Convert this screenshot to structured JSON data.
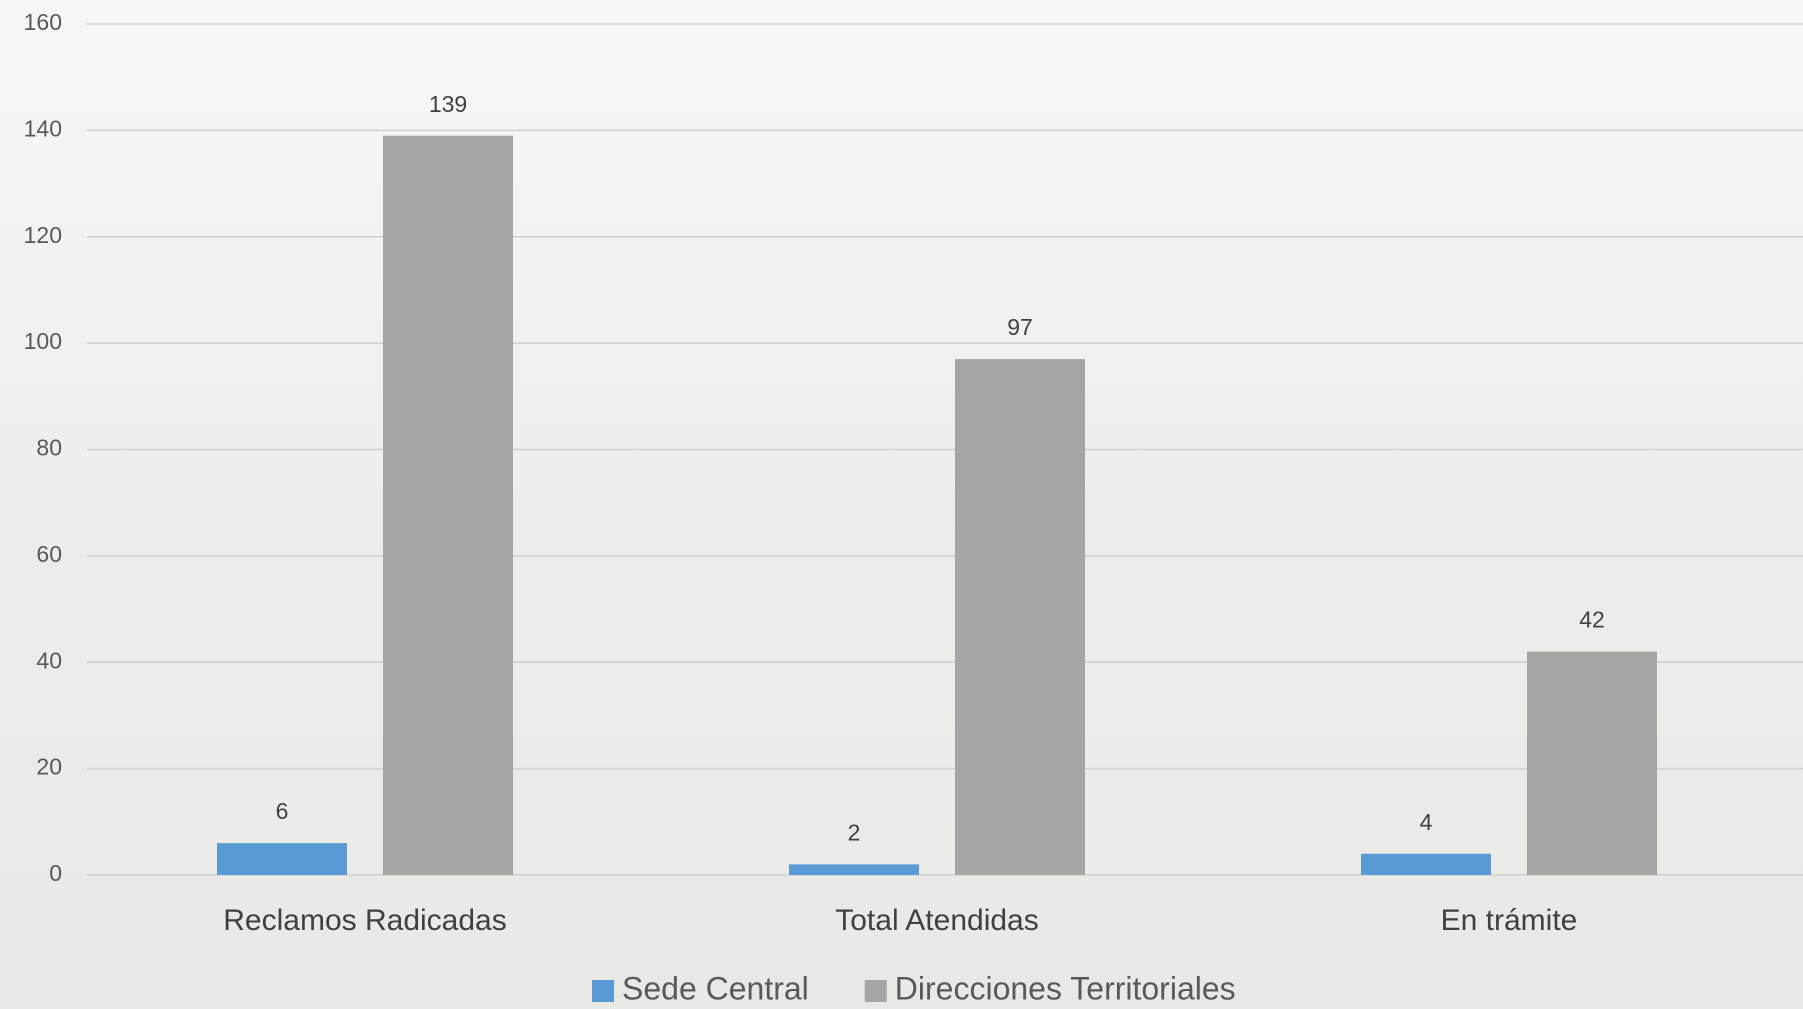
{
  "chart_data": {
    "type": "bar",
    "categories": [
      "Reclamos Radicadas",
      "Total Atendidas",
      "En trámite"
    ],
    "series": [
      {
        "name": "Sede Central",
        "color": "#5b9bd5",
        "values": [
          6,
          2,
          4
        ]
      },
      {
        "name": "Direcciones Territoriales",
        "color": "#a5a5a5",
        "values": [
          139,
          97,
          42
        ]
      }
    ],
    "ylim": [
      0,
      160
    ],
    "yticks": [
      0,
      20,
      40,
      60,
      80,
      100,
      120,
      140,
      160
    ],
    "grid": true,
    "legend": "bottom"
  }
}
